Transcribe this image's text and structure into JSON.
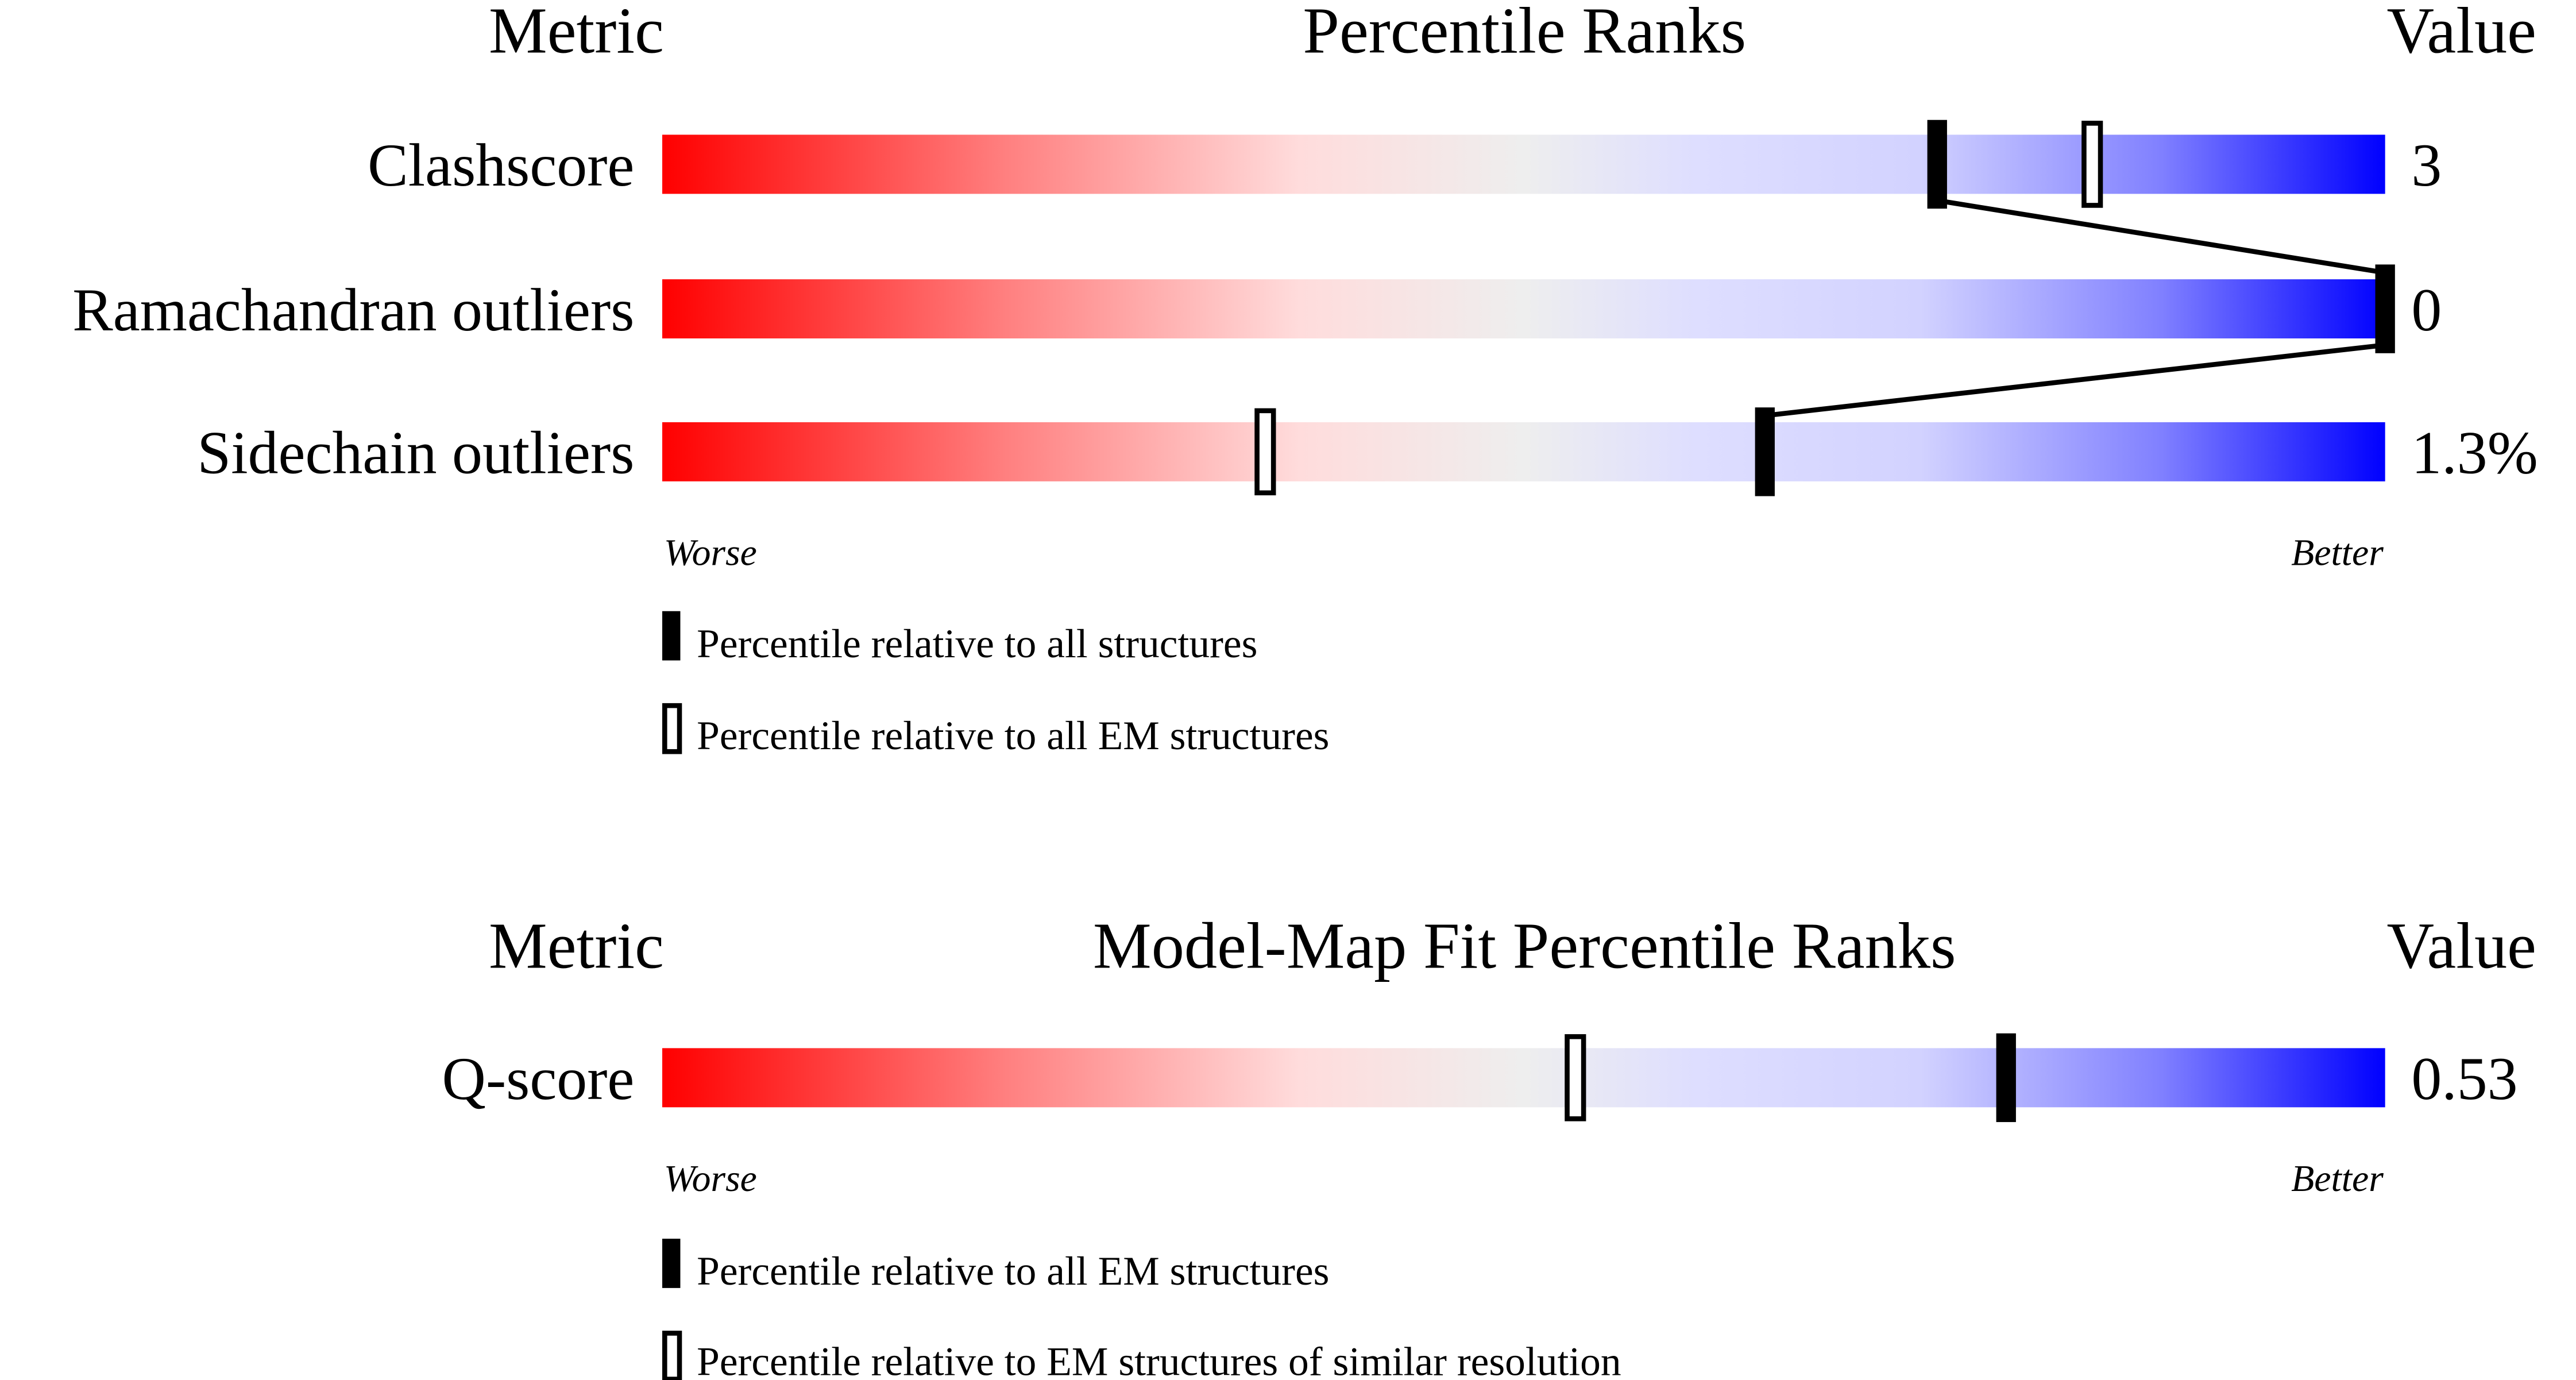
{
  "chart_data": [
    {
      "type": "bar",
      "title": "Percentile Ranks",
      "metric_header": "Metric",
      "value_header": "Value",
      "xlim": [
        0,
        100
      ],
      "scale_labels": {
        "left": "Worse",
        "right": "Better"
      },
      "metrics": [
        {
          "name": "Clashscore",
          "value": "3",
          "percentile_all": 74,
          "percentile_em": 83
        },
        {
          "name": "Ramachandran outliers",
          "value": "0",
          "percentile_all": 100,
          "percentile_em": 100
        },
        {
          "name": "Sidechain outliers",
          "value": "1.3%",
          "percentile_all": 64,
          "percentile_em": 35
        }
      ],
      "legend": {
        "filled": "Percentile relative to all structures",
        "hollow": "Percentile relative to all EM structures"
      }
    },
    {
      "type": "bar",
      "title": "Model-Map Fit Percentile Ranks",
      "metric_header": "Metric",
      "value_header": "Value",
      "xlim": [
        0,
        100
      ],
      "scale_labels": {
        "left": "Worse",
        "right": "Better"
      },
      "metrics": [
        {
          "name": "Q-score",
          "value": "0.53",
          "percentile_all": 78,
          "percentile_em": 53
        }
      ],
      "legend": {
        "filled": "Percentile relative to all EM structures",
        "hollow": "Percentile relative to EM structures of similar resolution"
      }
    }
  ],
  "colors": {
    "worse": "#ff0000",
    "neutral": "#eeeeee",
    "better": "#0000ff",
    "marker": "#000000"
  }
}
